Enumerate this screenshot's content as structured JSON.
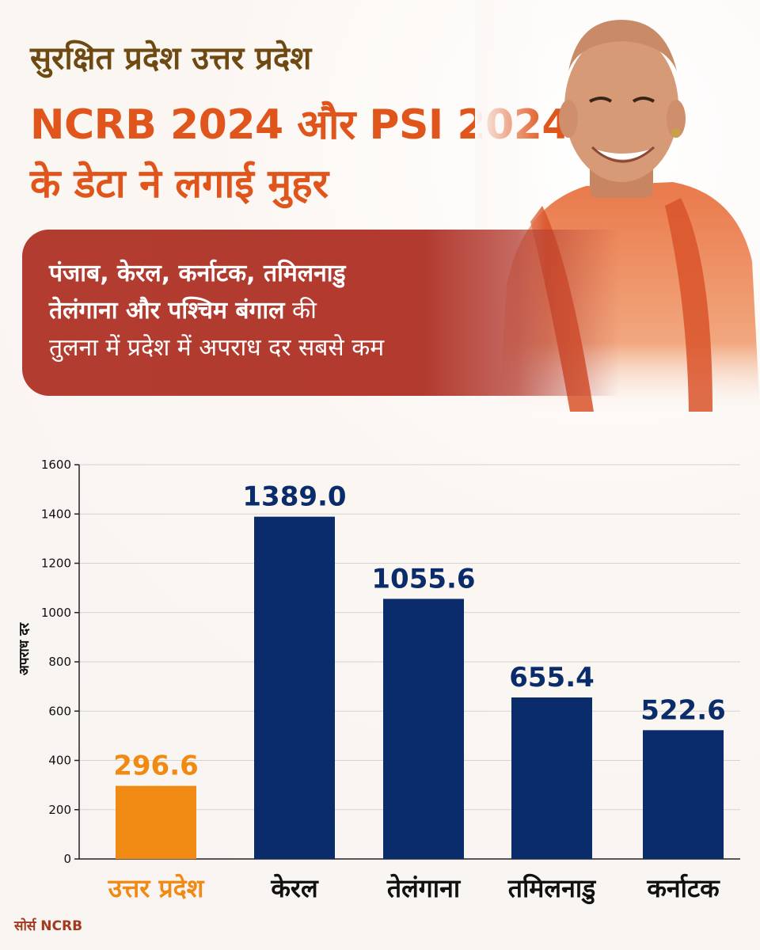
{
  "header": {
    "title_line1": "सुरक्षित प्रदेश उत्तर प्रदेश",
    "title_line2": "NCRB 2024 और PSI 2024",
    "title_line3": "के डेटा ने लगाई मुहर"
  },
  "banner": {
    "bold_line1": "पंजाब, केरल, कर्नाटक, तमिलनाडु",
    "bold_line2": "तेलंगाना और पश्चिम बंगाल",
    "normal_line2": " की",
    "line3": "तुलना में प्रदेश में अपराध दर सबसे कम"
  },
  "colors": {
    "highlight_bar": "#f18a12",
    "bar": "#0b2c6b",
    "title_brown": "#6e4a12",
    "title_orange": "#e0551c",
    "banner": "#b33c30"
  },
  "chart_data": {
    "type": "bar",
    "categories": [
      "उत्तर प्रदेश",
      "केरल",
      "तेलंगाना",
      "तमिलनाडु",
      "कर्नाटक"
    ],
    "values": [
      296.6,
      1389.0,
      1055.6,
      655.4,
      522.6
    ],
    "value_labels": [
      "296.6",
      "1389.0",
      "1055.6",
      "655.4",
      "522.6"
    ],
    "highlight_index": 0,
    "ylabel": "अपराध दर",
    "xlabel": "",
    "ylim": [
      0,
      1600
    ],
    "yticks": [
      0,
      200,
      400,
      600,
      800,
      1000,
      1200,
      1400,
      1600
    ],
    "grid": true
  },
  "footer": {
    "source": "सोर्स NCRB"
  }
}
